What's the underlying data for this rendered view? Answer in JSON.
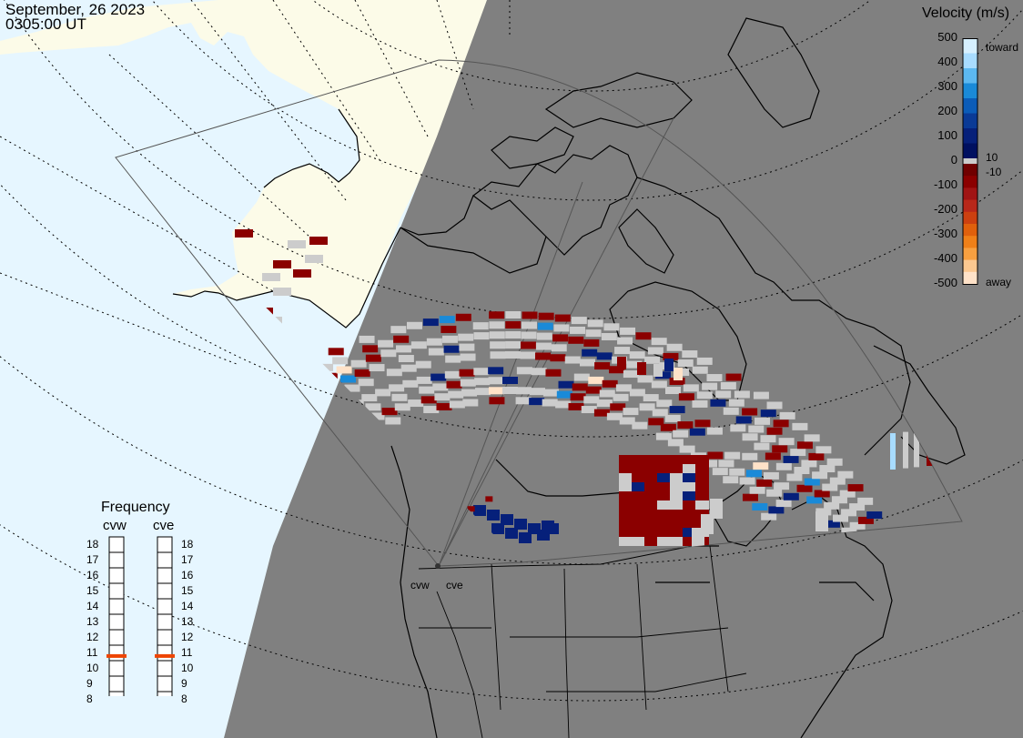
{
  "header": {
    "date": "September, 26 2023",
    "time": "0305:00 UT"
  },
  "colorbar": {
    "title": "Velocity (m/s)",
    "ticks": [
      "500",
      "400",
      "300",
      "200",
      "100",
      "0",
      "-100",
      "-200",
      "-300",
      "-400",
      "-500"
    ],
    "label_toward": "toward",
    "label_away": "away",
    "label_pos_threshold": "10",
    "label_neg_threshold": "-10",
    "colors": {
      "toward": [
        "#d6f0ff",
        "#a8dcff",
        "#5cb8f0",
        "#1a8ad8",
        "#0b5cb8",
        "#0a3a96",
        "#06207a",
        "#001060"
      ],
      "ground_scatter": "#cccccc",
      "away": [
        "#700000",
        "#8b0000",
        "#a01414",
        "#b8281a",
        "#cc4010",
        "#e0600c",
        "#f08018",
        "#f8a040",
        "#fcc890",
        "#ffe2c8"
      ]
    }
  },
  "frequency": {
    "title": "Frequency",
    "radars": [
      {
        "name": "cvw",
        "value_mhz": 10.8
      },
      {
        "name": "cve",
        "value_mhz": 10.8
      }
    ],
    "ticks": [
      "18",
      "17",
      "16",
      "15",
      "14",
      "13",
      "12",
      "11",
      "10",
      "9",
      "8"
    ],
    "marker_color": "#ee4400"
  },
  "map": {
    "radar_labels": [
      "cvw",
      "cve"
    ],
    "colors": {
      "ocean": "#e6f6ff",
      "land_day": "#fcfbe8",
      "night_shade": "#808080",
      "coastline": "#000000",
      "fov_outline": "#444444",
      "grid": "#000000"
    }
  }
}
